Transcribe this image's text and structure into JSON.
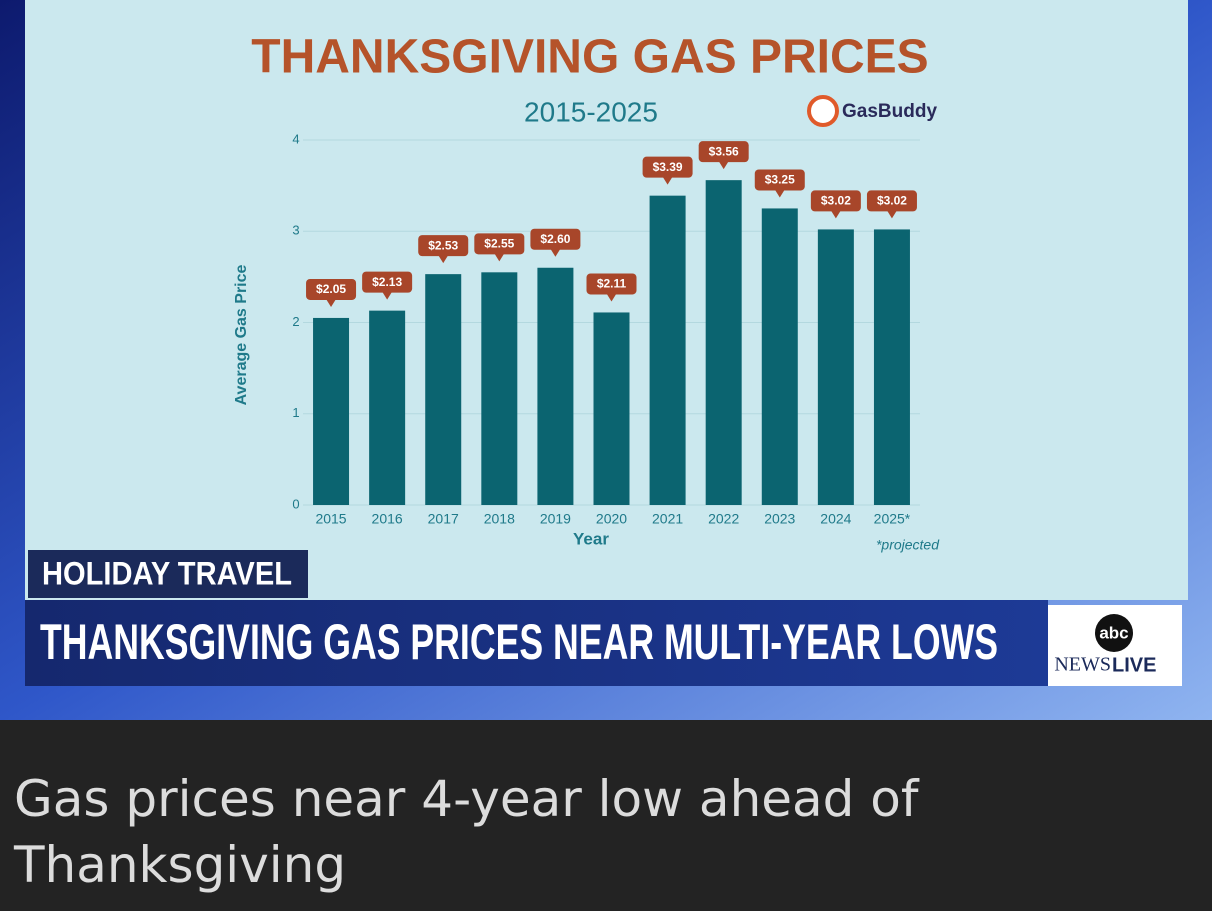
{
  "chart_data": {
    "type": "bar",
    "title": "THANKSGIVING GAS PRICES",
    "subtitle": "2015-2025",
    "y_label": "Average Gas Price",
    "x_label": "Year",
    "note": "*projected",
    "categories": [
      "2015",
      "2016",
      "2017",
      "2018",
      "2019",
      "2020",
      "2021",
      "2022",
      "2023",
      "2024",
      "2025*"
    ],
    "values": [
      2.05,
      2.13,
      2.53,
      2.55,
      2.6,
      2.11,
      3.39,
      3.56,
      3.25,
      3.02,
      3.02
    ],
    "value_labels": [
      "$2.05",
      "$2.13",
      "$2.53",
      "$2.55",
      "$2.60",
      "$2.11",
      "$3.39",
      "$3.56",
      "$3.25",
      "$3.02",
      "$3.02"
    ],
    "color": "#0b6470",
    "label_color": "#a8462a",
    "ylim": [
      0,
      4
    ],
    "yticks": [
      0,
      1,
      2,
      3,
      4
    ],
    "grid": true
  },
  "video": {
    "brand": "GasBuddy",
    "tag": "HOLIDAY TRAVEL",
    "headline": "THANKSGIVING GAS PRICES NEAR MULTI-YEAR LOWS",
    "logo_top": "abc",
    "logo_news": "NEWS",
    "logo_live": "LIVE"
  },
  "caption": "Gas prices near 4-year low ahead of Thanksgiving"
}
